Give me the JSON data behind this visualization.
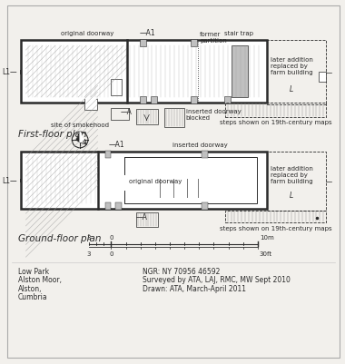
{
  "bg_color": "#f2f0ec",
  "line_color": "#2a2a2a",
  "border_color": "#aaaaaa",
  "hatch_color": "#999999",
  "gray_fill": "#c0c0c0",
  "location_line1": "Low Park",
  "location_line2": "Alston Moor,",
  "location_line3": "Alston,",
  "location_line4": "Cumbria",
  "ngr": "NGR: NY 70956 46592",
  "surveyed": "Surveyed by ATA, LAJ, RMC, MW Sept 2010",
  "drawn": "Drawn: ATA, March-April 2011",
  "first_floor_label": "First-floor plan",
  "ground_floor_label": "Ground-floor plan",
  "label_original_doorway_ff": "original doorway",
  "label_former_partition": "former\npartition",
  "label_stair_trap": "stair trap",
  "label_later_addition": "later addition\nreplaced by\nfarm building",
  "label_L_ff": "L",
  "label_smokehood": "site of smokehood",
  "label_inserted_blocked": "inserted doorway\nblocked",
  "label_steps_ff": "steps shown on 19th-century maps",
  "label_inserted_gf": "inserted doorway",
  "label_original_doorway_gf": "original doorway",
  "label_later_addition_gf": "later addition\nreplaced by\nfarm building",
  "label_L_gf": "L",
  "label_steps_gf": "steps shown on 19th-century maps",
  "label_A1_ff": "—A1",
  "label_A_ff": "—A",
  "label_A1_gf": "—A1",
  "label_A_gf": "—A",
  "label_L1_ff": "L1—",
  "label_L1_gf": "L1—"
}
